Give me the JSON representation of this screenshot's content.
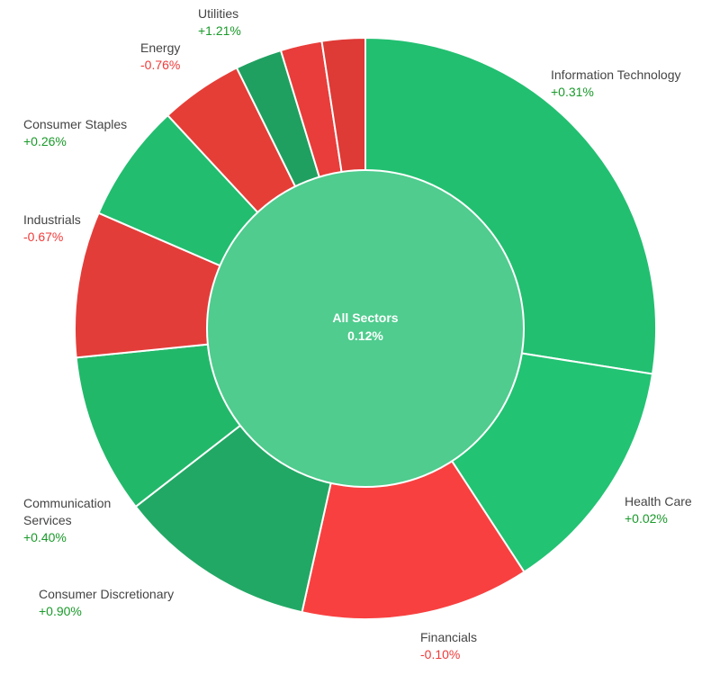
{
  "chart_data": {
    "type": "pie",
    "subtype": "sunburst-donut",
    "center": {
      "label": "All Sectors",
      "change": "0.12%",
      "color": "#4fcc8e"
    },
    "slices": [
      {
        "name": "Information Technology",
        "change": "+0.31%",
        "share": 27.5,
        "color": "#22bf70"
      },
      {
        "name": "Health Care",
        "change": "+0.02%",
        "share": 13.3,
        "color": "#22c373"
      },
      {
        "name": "Financials",
        "change": "-0.10%",
        "share": 12.7,
        "color": "#f84040"
      },
      {
        "name": "Consumer Discretionary",
        "change": "+0.90%",
        "share": 11.0,
        "color": "#22a865"
      },
      {
        "name": "Communication Services",
        "change": "+0.40%",
        "share": 8.9,
        "color": "#22b86a"
      },
      {
        "name": "Industrials",
        "change": "-0.67%",
        "share": 8.1,
        "color": "#e33d3a"
      },
      {
        "name": "Consumer Staples",
        "change": "+0.26%",
        "share": 6.6,
        "color": "#22bd6f"
      },
      {
        "name": "Energy",
        "change": "-0.76%",
        "share": 4.6,
        "color": "#e53e37"
      },
      {
        "name": "Utilities",
        "change": "+1.21%",
        "share": 2.6,
        "color": "#20a060"
      },
      {
        "name": "",
        "change": "",
        "share": 2.3,
        "color": "#e83d3a"
      },
      {
        "name": "",
        "change": "",
        "share": 2.4,
        "color": "#de3a36"
      }
    ]
  }
}
